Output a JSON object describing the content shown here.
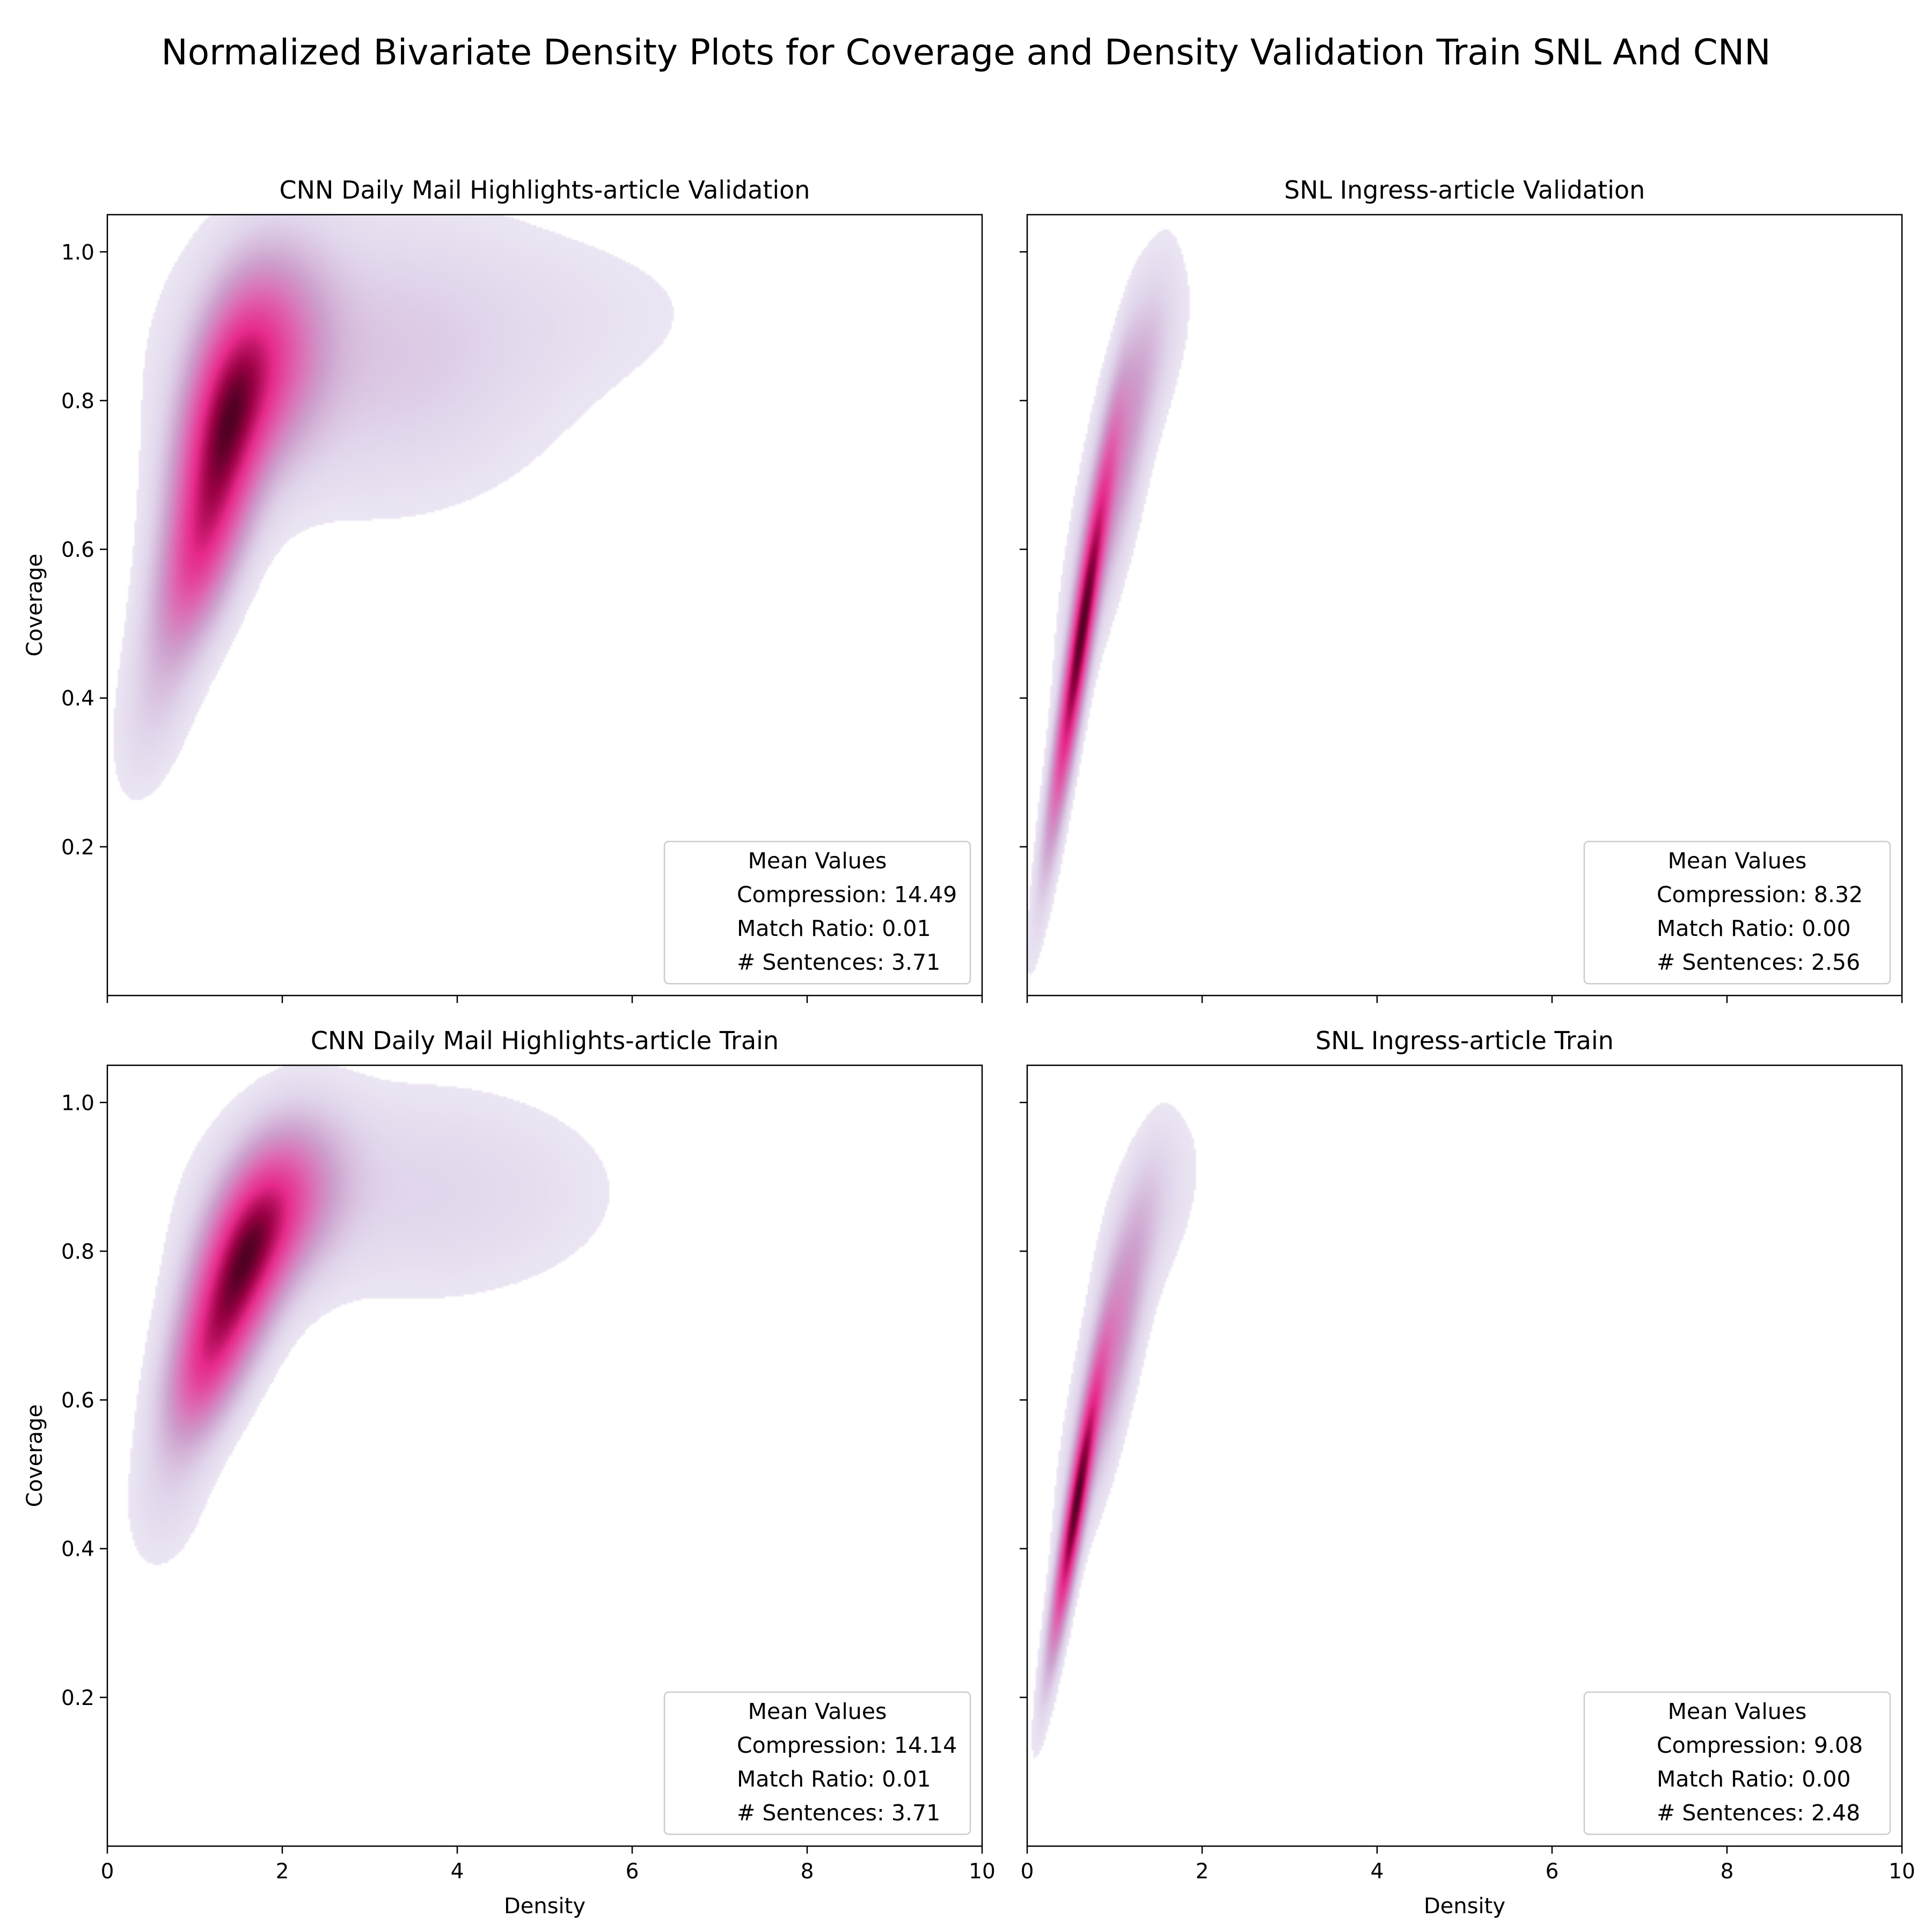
{
  "title": "Normalized Bivariate Density Plots for Coverage and Density Validation Train SNL And CNN",
  "colors": {
    "low": "#f2eef7",
    "mid_purple": "#c994c7",
    "mid_pink": "#e7298a",
    "high": "#67001f"
  },
  "chart_data": [
    {
      "type": "heatmap",
      "title": "CNN Daily Mail Highlights-article Validation",
      "xlabel": "",
      "ylabel": "Coverage",
      "xlim": [
        0,
        10
      ],
      "ylim": [
        0,
        1.05
      ],
      "x_ticks": [
        "0",
        "2",
        "4",
        "6",
        "8",
        "10"
      ],
      "y_ticks": [
        "0.2",
        "0.4",
        "0.6",
        "0.8",
        "1.0"
      ],
      "show_x_tick_labels": false,
      "show_y_tick_labels": true,
      "density_components": [
        {
          "cx": 1.3,
          "cy": 0.74,
          "sx": 0.35,
          "sy": 0.11,
          "rho": 0.45,
          "w": 1.0
        },
        {
          "cx": 1.8,
          "cy": 0.85,
          "sx": 0.45,
          "sy": 0.09,
          "rho": 0.2,
          "w": 0.55
        },
        {
          "cx": 1.0,
          "cy": 0.58,
          "sx": 0.3,
          "sy": 0.08,
          "rho": 0.5,
          "w": 0.45
        },
        {
          "cx": 3.0,
          "cy": 0.86,
          "sx": 1.3,
          "sy": 0.12,
          "rho": 0.0,
          "w": 0.14
        },
        {
          "cx": 0.6,
          "cy": 0.42,
          "sx": 0.3,
          "sy": 0.09,
          "rho": 0.5,
          "w": 0.12
        },
        {
          "cx": 5.5,
          "cy": 0.92,
          "sx": 1.3,
          "sy": 0.08,
          "rho": 0.0,
          "w": 0.03
        }
      ],
      "legend": {
        "title": "Mean Values",
        "entries": [
          "Compression: 14.49",
          "Match Ratio: 0.01",
          "# Sentences: 3.71"
        ],
        "position": "lower-right"
      }
    },
    {
      "type": "heatmap",
      "title": "SNL Ingress-article Validation",
      "xlabel": "",
      "ylabel": "",
      "xlim": [
        0,
        10
      ],
      "ylim": [
        0,
        1.05
      ],
      "x_ticks": [
        "0",
        "2",
        "4",
        "6",
        "8",
        "10"
      ],
      "y_ticks": [
        "0.2",
        "0.4",
        "0.6",
        "0.8",
        "1.0"
      ],
      "show_x_tick_labels": false,
      "show_y_tick_labels": false,
      "density_components": [
        {
          "cx": 0.6,
          "cy": 0.47,
          "sx": 0.22,
          "sy": 0.16,
          "rho": 0.93,
          "w": 1.0
        },
        {
          "cx": 1.0,
          "cy": 0.7,
          "sx": 0.3,
          "sy": 0.14,
          "rho": 0.8,
          "w": 0.3
        },
        {
          "cx": 1.4,
          "cy": 0.85,
          "sx": 0.3,
          "sy": 0.08,
          "rho": 0.6,
          "w": 0.06
        }
      ],
      "legend": {
        "title": "Mean Values",
        "entries": [
          "Compression: 8.32",
          "Match Ratio: 0.00",
          "# Sentences: 2.56"
        ],
        "position": "lower-right"
      }
    },
    {
      "type": "heatmap",
      "title": "CNN Daily Mail Highlights-article Train",
      "xlabel": "Density",
      "ylabel": "Coverage",
      "xlim": [
        0,
        10
      ],
      "ylim": [
        0,
        1.05
      ],
      "x_ticks": [
        "0",
        "2",
        "4",
        "6",
        "8",
        "10"
      ],
      "y_ticks": [
        "0.2",
        "0.4",
        "0.6",
        "0.8",
        "1.0"
      ],
      "show_x_tick_labels": true,
      "show_y_tick_labels": true,
      "density_components": [
        {
          "cx": 1.5,
          "cy": 0.77,
          "sx": 0.38,
          "sy": 0.09,
          "rho": 0.55,
          "w": 1.0
        },
        {
          "cx": 2.0,
          "cy": 0.86,
          "sx": 0.45,
          "sy": 0.07,
          "rho": 0.3,
          "w": 0.45
        },
        {
          "cx": 1.1,
          "cy": 0.64,
          "sx": 0.3,
          "sy": 0.07,
          "rho": 0.5,
          "w": 0.45
        },
        {
          "cx": 3.5,
          "cy": 0.88,
          "sx": 1.4,
          "sy": 0.09,
          "rho": 0.0,
          "w": 0.09
        },
        {
          "cx": 0.7,
          "cy": 0.48,
          "sx": 0.3,
          "sy": 0.07,
          "rho": 0.3,
          "w": 0.07
        }
      ],
      "legend": {
        "title": "Mean Values",
        "entries": [
          "Compression: 14.14",
          "Match Ratio: 0.01",
          "# Sentences: 3.71"
        ],
        "position": "lower-right"
      }
    },
    {
      "type": "heatmap",
      "title": "SNL Ingress-article Train",
      "xlabel": "Density",
      "ylabel": "",
      "xlim": [
        0,
        10
      ],
      "ylim": [
        0,
        1.05
      ],
      "x_ticks": [
        "0",
        "2",
        "4",
        "6",
        "8",
        "10"
      ],
      "y_ticks": [
        "0.2",
        "0.4",
        "0.6",
        "0.8",
        "1.0"
      ],
      "show_x_tick_labels": true,
      "show_y_tick_labels": false,
      "density_components": [
        {
          "cx": 0.55,
          "cy": 0.45,
          "sx": 0.18,
          "sy": 0.12,
          "rho": 0.92,
          "w": 1.0
        },
        {
          "cx": 0.95,
          "cy": 0.66,
          "sx": 0.28,
          "sy": 0.13,
          "rho": 0.8,
          "w": 0.35
        },
        {
          "cx": 1.4,
          "cy": 0.85,
          "sx": 0.35,
          "sy": 0.08,
          "rho": 0.5,
          "w": 0.07
        }
      ],
      "legend": {
        "title": "Mean Values",
        "entries": [
          "Compression: 9.08",
          "Match Ratio: 0.00",
          "# Sentences: 2.48"
        ],
        "position": "lower-right"
      }
    }
  ]
}
